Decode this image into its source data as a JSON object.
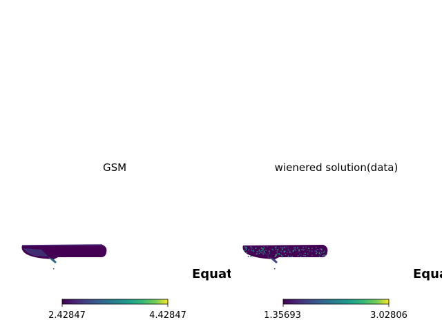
{
  "chart_data": [
    {
      "type": "heatmap",
      "projection": "mollweide",
      "title": "GSM",
      "coord_label": "Equatorial",
      "colormap": "viridis",
      "colorbar": {
        "min_label": "2.42847",
        "max_label": "4.42847",
        "min": 2.42847,
        "max": 4.42847
      },
      "colors": {
        "low": "#440154",
        "mid": "#21918c",
        "high": "#fde725"
      }
    },
    {
      "type": "heatmap",
      "projection": "mollweide",
      "title": "wienered solution(data)",
      "coord_label": "Equatorial",
      "colormap": "viridis",
      "colorbar": {
        "min_label": "1.35693",
        "max_label": "3.02806",
        "min": 1.35693,
        "max": 3.02806
      },
      "colors": {
        "low": "#440154",
        "mid": "#21918c",
        "high": "#fde725"
      }
    }
  ]
}
